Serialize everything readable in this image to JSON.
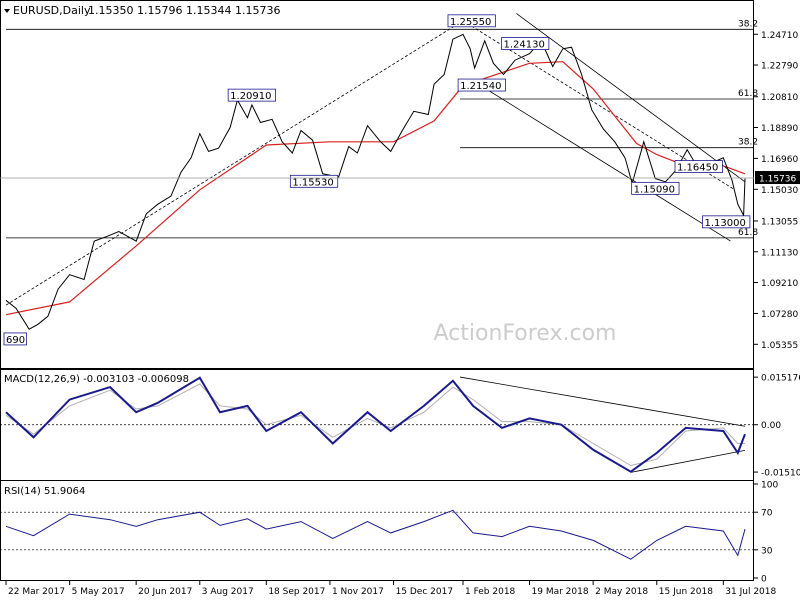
{
  "header": {
    "symbol_label": "EURUSD,Daily",
    "ohlc": "1.15350 1.15796 1.15344 1.15736"
  },
  "watermark": "ActionForex.com",
  "colors": {
    "price": "#000000",
    "ma": "#d62020",
    "channel": "#000000",
    "hline": "#000000",
    "grid": "#d0d0d0",
    "macd_main": "#1a1a8c",
    "macd_signal": "#b0b0b0",
    "rsi": "#1a1a8c"
  },
  "chart_data": [
    {
      "type": "line",
      "panel": "price",
      "ylim": [
        1.04,
        1.266
      ],
      "y_ticks": [
        "1.24710",
        "1.22790",
        "1.20810",
        "1.18890",
        "1.16960",
        "1.15030",
        "1.13055",
        "1.11130",
        "1.09210",
        "1.07280",
        "1.05355"
      ],
      "current_price_label": "1.15736",
      "current_price": 1.15736,
      "x_ticks": [
        "22 Mar 2017",
        "5 May 2017",
        "20 Jun 2017",
        "3 Aug 2017",
        "18 Sep 2017",
        "1 Nov 2017",
        "15 Dec 2017",
        "1 Feb 2018",
        "19 Mar 2018",
        "2 May 2018",
        "15 Jun 2018",
        "31 Jul 2018"
      ],
      "x_tick_dates": [
        "2017-03-22",
        "2017-05-05",
        "2017-06-20",
        "2017-08-03",
        "2017-09-18",
        "2017-11-01",
        "2017-12-15",
        "2018-02-01",
        "2018-03-19",
        "2018-05-02",
        "2018-06-15",
        "2018-07-31"
      ],
      "x_range": [
        "2017-03-22",
        "2018-08-15"
      ],
      "price_series": [
        [
          "2017-03-22",
          1.081
        ],
        [
          "2017-03-29",
          1.076
        ],
        [
          "2017-04-07",
          1.063
        ],
        [
          "2017-04-13",
          1.066
        ],
        [
          "2017-04-20",
          1.071
        ],
        [
          "2017-04-27",
          1.088
        ],
        [
          "2017-05-05",
          1.097
        ],
        [
          "2017-05-15",
          1.094
        ],
        [
          "2017-05-22",
          1.118
        ],
        [
          "2017-05-31",
          1.121
        ],
        [
          "2017-06-08",
          1.124
        ],
        [
          "2017-06-20",
          1.118
        ],
        [
          "2017-06-27",
          1.135
        ],
        [
          "2017-07-05",
          1.141
        ],
        [
          "2017-07-14",
          1.146
        ],
        [
          "2017-07-21",
          1.161
        ],
        [
          "2017-07-28",
          1.17
        ],
        [
          "2017-08-03",
          1.185
        ],
        [
          "2017-08-09",
          1.174
        ],
        [
          "2017-08-16",
          1.176
        ],
        [
          "2017-08-24",
          1.189
        ],
        [
          "2017-08-29",
          1.206
        ],
        [
          "2017-09-05",
          1.195
        ],
        [
          "2017-09-08",
          1.203
        ],
        [
          "2017-09-14",
          1.192
        ],
        [
          "2017-09-22",
          1.194
        ],
        [
          "2017-09-29",
          1.18
        ],
        [
          "2017-10-06",
          1.173
        ],
        [
          "2017-10-12",
          1.187
        ],
        [
          "2017-10-20",
          1.181
        ],
        [
          "2017-10-27",
          1.16
        ],
        [
          "2017-11-07",
          1.158
        ],
        [
          "2017-11-14",
          1.177
        ],
        [
          "2017-11-20",
          1.173
        ],
        [
          "2017-11-27",
          1.19
        ],
        [
          "2017-12-06",
          1.18
        ],
        [
          "2017-12-13",
          1.174
        ],
        [
          "2017-12-21",
          1.187
        ],
        [
          "2017-12-29",
          1.199
        ],
        [
          "2018-01-08",
          1.197
        ],
        [
          "2018-01-12",
          1.216
        ],
        [
          "2018-01-19",
          1.222
        ],
        [
          "2018-01-25",
          1.244
        ],
        [
          "2018-02-01",
          1.247
        ],
        [
          "2018-02-06",
          1.238
        ],
        [
          "2018-02-09",
          1.226
        ],
        [
          "2018-02-16",
          1.243
        ],
        [
          "2018-02-22",
          1.229
        ],
        [
          "2018-03-01",
          1.222
        ],
        [
          "2018-03-09",
          1.231
        ],
        [
          "2018-03-19",
          1.235
        ],
        [
          "2018-03-27",
          1.243
        ],
        [
          "2018-04-04",
          1.227
        ],
        [
          "2018-04-11",
          1.238
        ],
        [
          "2018-04-17",
          1.239
        ],
        [
          "2018-04-24",
          1.222
        ],
        [
          "2018-05-01",
          1.2
        ],
        [
          "2018-05-09",
          1.188
        ],
        [
          "2018-05-17",
          1.18
        ],
        [
          "2018-05-24",
          1.17
        ],
        [
          "2018-05-29",
          1.154
        ],
        [
          "2018-06-06",
          1.18
        ],
        [
          "2018-06-14",
          1.157
        ],
        [
          "2018-06-21",
          1.155
        ],
        [
          "2018-06-28",
          1.162
        ],
        [
          "2018-07-06",
          1.175
        ],
        [
          "2018-07-12",
          1.166
        ],
        [
          "2018-07-19",
          1.164
        ],
        [
          "2018-07-26",
          1.168
        ],
        [
          "2018-07-31",
          1.17
        ],
        [
          "2018-08-06",
          1.156
        ],
        [
          "2018-08-10",
          1.141
        ],
        [
          "2018-08-14",
          1.134
        ],
        [
          "2018-08-15",
          1.157
        ]
      ],
      "ma_series": [
        [
          "2017-03-22",
          1.072
        ],
        [
          "2017-05-05",
          1.08
        ],
        [
          "2017-06-20",
          1.115
        ],
        [
          "2017-08-03",
          1.15
        ],
        [
          "2017-09-18",
          1.178
        ],
        [
          "2017-11-01",
          1.18
        ],
        [
          "2017-12-15",
          1.18
        ],
        [
          "2018-01-12",
          1.193
        ],
        [
          "2018-02-01",
          1.215
        ],
        [
          "2018-03-19",
          1.229
        ],
        [
          "2018-04-11",
          1.23
        ],
        [
          "2018-05-02",
          1.213
        ],
        [
          "2018-06-01",
          1.179
        ],
        [
          "2018-06-15",
          1.172
        ],
        [
          "2018-07-05",
          1.165
        ],
        [
          "2018-07-31",
          1.165
        ],
        [
          "2018-08-15",
          1.16
        ]
      ],
      "level_labels": [
        {
          "text": "1.25550",
          "date": "2018-01-23",
          "price": 1.2555
        },
        {
          "text": "1.24130",
          "date": "2018-03-01",
          "price": 1.2413
        },
        {
          "text": "1.21540",
          "date": "2018-01-30",
          "price": 1.2154
        },
        {
          "text": "1.20910",
          "date": "2017-08-24",
          "price": 1.2091
        },
        {
          "text": "1.15530",
          "date": "2017-10-06",
          "price": 1.1553
        },
        {
          "text": "1.15090",
          "date": "2018-05-30",
          "price": 1.1509
        },
        {
          "text": "1.16450",
          "date": "2018-06-29",
          "price": 1.1645
        },
        {
          "text": "1.13000",
          "date": "2018-07-18",
          "price": 1.13
        },
        {
          "text": "690",
          "date": "2017-03-22",
          "price": 1.0569
        }
      ],
      "fib_levels": [
        {
          "label": "38.2",
          "price": 1.2502
        },
        {
          "label": "61.8",
          "price": 1.2067
        },
        {
          "label": "38.2",
          "price": 1.1763
        },
        {
          "label": "61.8",
          "price": 1.12
        }
      ],
      "fib_line_starts": [
        "2017-03-22",
        "2018-01-30",
        "2018-01-30",
        "2017-03-22"
      ],
      "trend_lines": [
        {
          "from": [
            "2017-03-22",
            1.078
          ],
          "to": [
            "2018-02-01",
            1.2555
          ]
        },
        {
          "from": [
            "2018-02-01",
            1.2555
          ],
          "to": [
            "2018-08-08",
            1.15
          ]
        },
        {
          "from": [
            "2018-02-08",
            1.218
          ],
          "to": [
            "2018-08-05",
            1.118
          ]
        },
        {
          "from": [
            "2018-03-10",
            1.26
          ],
          "to": [
            "2018-08-15",
            1.155
          ]
        }
      ]
    },
    {
      "type": "line",
      "panel": "macd",
      "label": "MACD(12,26,9) -0.003103 -0.006098",
      "ylim": [
        -0.017,
        0.0165
      ],
      "y_ticks": [
        {
          "label": "0.015176",
          "value": 0.015176
        },
        {
          "label": "0.00",
          "value": 0.0
        },
        {
          "label": "-0.015109",
          "value": -0.015109
        }
      ],
      "macd_series": [
        [
          "2017-03-22",
          0.004
        ],
        [
          "2017-04-10",
          -0.004
        ],
        [
          "2017-05-05",
          0.008
        ],
        [
          "2017-06-02",
          0.012
        ],
        [
          "2017-06-20",
          0.004
        ],
        [
          "2017-07-05",
          0.007
        ],
        [
          "2017-08-03",
          0.015
        ],
        [
          "2017-08-17",
          0.004
        ],
        [
          "2017-09-05",
          0.006
        ],
        [
          "2017-09-18",
          -0.002
        ],
        [
          "2017-10-12",
          0.004
        ],
        [
          "2017-11-03",
          -0.006
        ],
        [
          "2017-11-27",
          0.004
        ],
        [
          "2017-12-13",
          -0.002
        ],
        [
          "2018-01-05",
          0.006
        ],
        [
          "2018-01-25",
          0.014
        ],
        [
          "2018-02-08",
          0.006
        ],
        [
          "2018-02-28",
          -0.001
        ],
        [
          "2018-03-19",
          0.002
        ],
        [
          "2018-04-10",
          0.0
        ],
        [
          "2018-05-02",
          -0.008
        ],
        [
          "2018-05-28",
          -0.015
        ],
        [
          "2018-06-15",
          -0.009
        ],
        [
          "2018-07-05",
          -0.001
        ],
        [
          "2018-07-31",
          -0.002
        ],
        [
          "2018-08-10",
          -0.009
        ],
        [
          "2018-08-15",
          -0.003
        ]
      ],
      "signal_series": [
        [
          "2017-03-22",
          0.003
        ],
        [
          "2017-04-10",
          -0.003
        ],
        [
          "2017-05-05",
          0.006
        ],
        [
          "2017-06-02",
          0.011
        ],
        [
          "2017-06-20",
          0.005
        ],
        [
          "2017-07-05",
          0.006
        ],
        [
          "2017-08-03",
          0.013
        ],
        [
          "2017-08-17",
          0.006
        ],
        [
          "2017-09-05",
          0.005
        ],
        [
          "2017-09-18",
          0.0
        ],
        [
          "2017-10-12",
          0.003
        ],
        [
          "2017-11-03",
          -0.004
        ],
        [
          "2017-11-27",
          0.002
        ],
        [
          "2017-12-13",
          -0.001
        ],
        [
          "2018-01-05",
          0.004
        ],
        [
          "2018-01-25",
          0.012
        ],
        [
          "2018-02-08",
          0.008
        ],
        [
          "2018-02-28",
          0.001
        ],
        [
          "2018-03-19",
          0.001
        ],
        [
          "2018-04-10",
          0.0
        ],
        [
          "2018-05-02",
          -0.006
        ],
        [
          "2018-05-28",
          -0.013
        ],
        [
          "2018-06-15",
          -0.011
        ],
        [
          "2018-07-05",
          -0.002
        ],
        [
          "2018-07-31",
          -0.001
        ],
        [
          "2018-08-10",
          -0.006
        ],
        [
          "2018-08-15",
          -0.006
        ]
      ],
      "trend_lines": [
        {
          "from": [
            "2018-01-30",
            0.0152
          ],
          "to": [
            "2018-08-15",
            -0.0005
          ]
        },
        {
          "from": [
            "2018-05-28",
            -0.0152
          ],
          "to": [
            "2018-08-15",
            -0.0082
          ]
        }
      ]
    },
    {
      "type": "line",
      "panel": "rsi",
      "label": "RSI(14) 51.9064",
      "ylim": [
        0,
        100
      ],
      "y_ticks": [
        {
          "label": "100",
          "value": 100
        },
        {
          "label": "70",
          "value": 70
        },
        {
          "label": "30",
          "value": 30
        },
        {
          "label": "0",
          "value": 0
        }
      ],
      "levels": [
        70,
        30
      ],
      "rsi_series": [
        [
          "2017-03-22",
          55
        ],
        [
          "2017-04-10",
          45
        ],
        [
          "2017-05-05",
          68
        ],
        [
          "2017-06-02",
          62
        ],
        [
          "2017-06-20",
          55
        ],
        [
          "2017-07-05",
          62
        ],
        [
          "2017-08-03",
          70
        ],
        [
          "2017-08-17",
          56
        ],
        [
          "2017-09-05",
          63
        ],
        [
          "2017-09-18",
          52
        ],
        [
          "2017-10-12",
          60
        ],
        [
          "2017-11-03",
          42
        ],
        [
          "2017-11-27",
          60
        ],
        [
          "2017-12-13",
          48
        ],
        [
          "2018-01-05",
          60
        ],
        [
          "2018-01-25",
          72
        ],
        [
          "2018-02-08",
          48
        ],
        [
          "2018-02-28",
          44
        ],
        [
          "2018-03-19",
          55
        ],
        [
          "2018-04-10",
          50
        ],
        [
          "2018-05-02",
          40
        ],
        [
          "2018-05-28",
          20
        ],
        [
          "2018-06-15",
          40
        ],
        [
          "2018-07-05",
          55
        ],
        [
          "2018-07-31",
          50
        ],
        [
          "2018-08-10",
          24
        ],
        [
          "2018-08-15",
          52
        ]
      ]
    }
  ]
}
